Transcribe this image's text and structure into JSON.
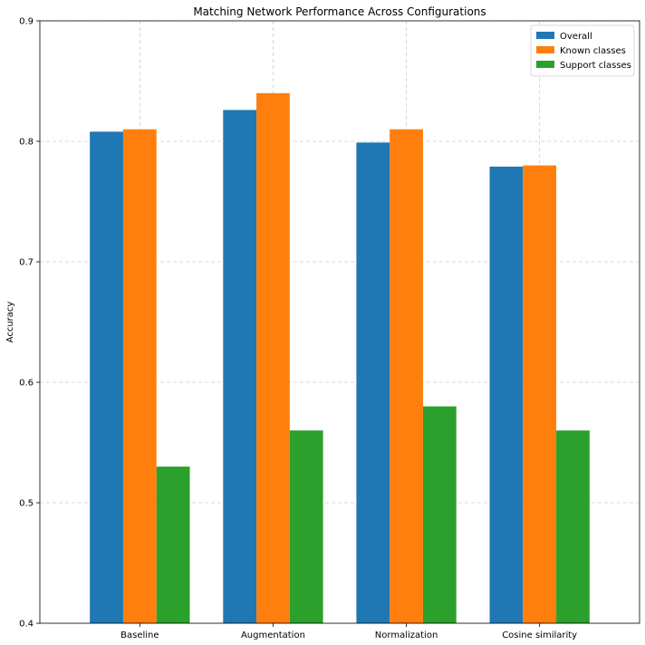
{
  "chart_data": {
    "type": "bar",
    "title": "Matching Network Performance Across Configurations",
    "xlabel": "",
    "ylabel": "Accuracy",
    "categories": [
      "Baseline",
      "Augmentation",
      "Normalization",
      "Cosine similarity"
    ],
    "series": [
      {
        "name": "Overall",
        "values": [
          0.808,
          0.826,
          0.799,
          0.779
        ]
      },
      {
        "name": "Known classes",
        "values": [
          0.81,
          0.84,
          0.81,
          0.78
        ]
      },
      {
        "name": "Support classes",
        "values": [
          0.53,
          0.56,
          0.58,
          0.56
        ]
      }
    ],
    "ylim": [
      0.4,
      0.9
    ],
    "yticks": [
      "0.4",
      "0.5",
      "0.6",
      "0.7",
      "0.8",
      "0.9"
    ],
    "grid": true,
    "legend_position": "top-right",
    "colors": [
      "#1f77b4",
      "#ff7f0e",
      "#2ca02c"
    ]
  }
}
